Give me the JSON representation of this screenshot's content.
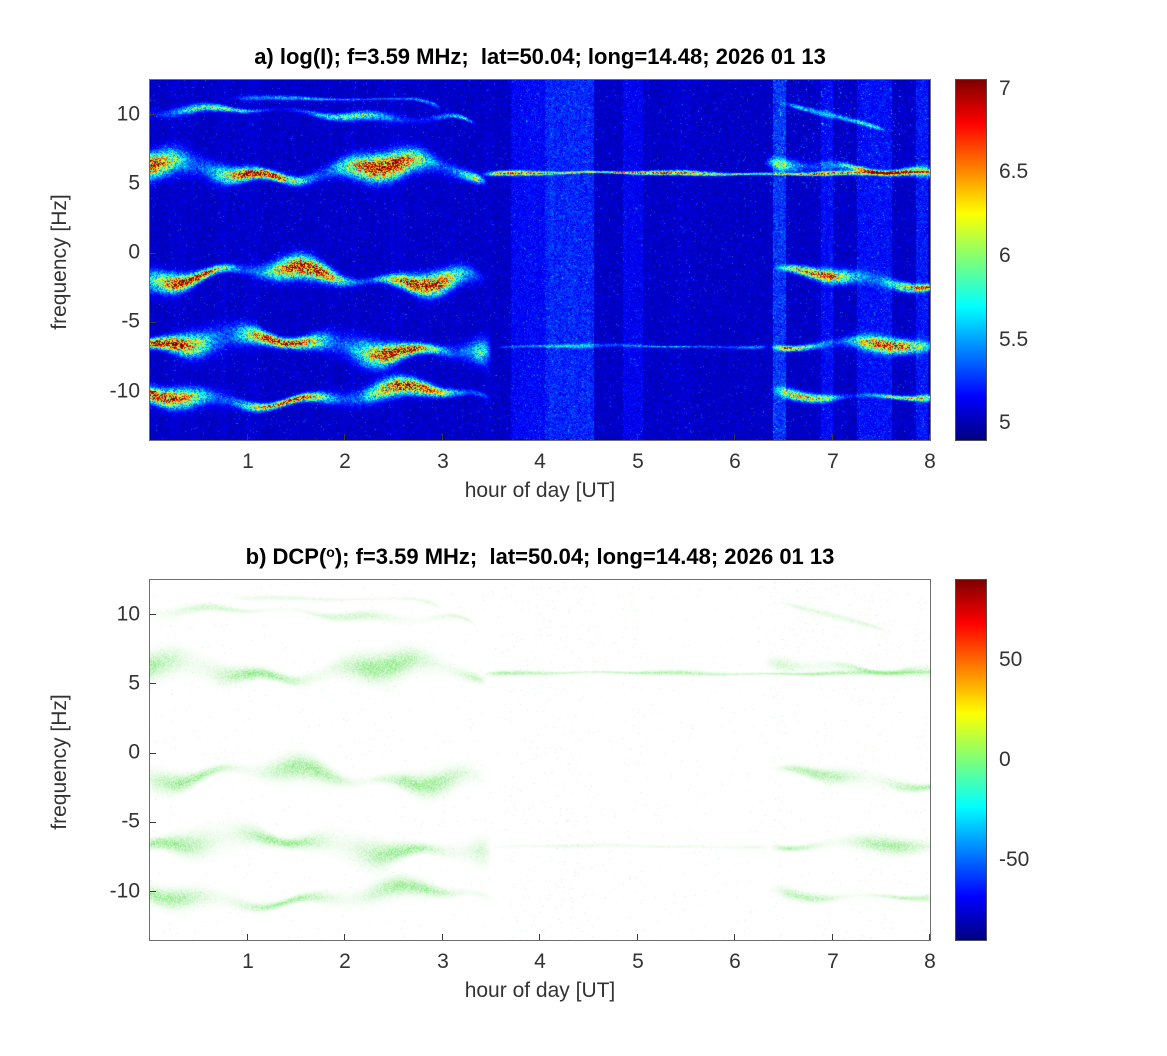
{
  "figure": {
    "panels": [
      {
        "id": "a",
        "title": "a) log(I); f=3.59 MHz;  lat=50.04; long=14.48; 2026 01 13",
        "xlabel": "hour of day [UT]",
        "ylabel": "frequency [Hz]",
        "xtick_labels": [
          "1",
          "2",
          "3",
          "4",
          "5",
          "6",
          "7",
          "8"
        ],
        "ytick_labels": [
          "10",
          "5",
          "0",
          "-5",
          "-10"
        ],
        "colorbar_tick_labels": [
          "7",
          "6.5",
          "6",
          "5.5",
          "5"
        ]
      },
      {
        "id": "b",
        "title_prefix": "b) DCP(",
        "title_sup": "o",
        "title_suffix": "); f=3.59 MHz;  lat=50.04; long=14.48; 2026 01 13",
        "xlabel": "hour of day [UT]",
        "ylabel": "frequency [Hz]",
        "xtick_labels": [
          "1",
          "2",
          "3",
          "4",
          "5",
          "6",
          "7",
          "8"
        ],
        "ytick_labels": [
          "10",
          "5",
          "0",
          "-5",
          "-10"
        ],
        "colorbar_tick_labels": [
          "50",
          "0",
          "-50"
        ]
      }
    ]
  },
  "chart_data": [
    {
      "type": "heatmap",
      "panel": "a",
      "title": "a) log(I); f=3.59 MHz; lat=50.04; long=14.48; 2026 01 13",
      "xlabel": "hour of day [UT]",
      "ylabel": "frequency [Hz]",
      "xlim": [
        0,
        8
      ],
      "ylim": [
        -13.5,
        12.5
      ],
      "xticks": [
        1,
        2,
        3,
        4,
        5,
        6,
        7,
        8
      ],
      "yticks": [
        10,
        5,
        0,
        -5,
        -10
      ],
      "colormap": "jet",
      "clim": [
        4.9,
        7.05
      ],
      "colorbar_ticks": [
        7,
        6.5,
        6,
        5.5,
        5
      ],
      "background_level": 5.0,
      "bands": [
        {
          "center_hz": 10.1,
          "x_range": [
            0,
            3.35
          ],
          "half_width_hz": 0.28,
          "peak_level": 5.85,
          "note": "faint thin upper trace"
        },
        {
          "center_hz": 11.2,
          "x_range": [
            0.8,
            3.0
          ],
          "half_width_hz": 0.15,
          "peak_level": 5.5,
          "note": "very faint wisp"
        },
        {
          "center_hz": 6.0,
          "x_range": [
            0,
            3.45
          ],
          "half_width_hz": 0.75,
          "peak_level": 7.0,
          "note": "strong trace"
        },
        {
          "center_hz": 5.8,
          "x_range": [
            3.4,
            8.0
          ],
          "half_width_hz": 0.14,
          "peak_level": 6.6,
          "note": "thin continuous line to end of record"
        },
        {
          "center_hz": -1.6,
          "x_range": [
            0,
            3.45
          ],
          "half_width_hz": 0.65,
          "peak_level": 6.9,
          "note": "strong trace"
        },
        {
          "center_hz": -6.6,
          "x_range": [
            0,
            3.5
          ],
          "half_width_hz": 0.8,
          "peak_level": 7.0,
          "note": "strongest trace"
        },
        {
          "center_hz": -10.3,
          "x_range": [
            0,
            3.5
          ],
          "half_width_hz": 0.55,
          "peak_level": 6.85,
          "note": "strong trace"
        },
        {
          "center_hz": -6.7,
          "x_range": [
            3.5,
            6.35
          ],
          "half_width_hz": 0.12,
          "peak_level": 5.45,
          "note": "very faint continuation"
        },
        {
          "center_hz": 6.1,
          "x_range": [
            6.3,
            8.0
          ],
          "half_width_hz": 0.38,
          "peak_level": 6.55,
          "note": "trace reappears"
        },
        {
          "center_hz": -1.5,
          "x_range": [
            6.35,
            8.0
          ],
          "half_width_hz": 0.42,
          "peak_level": 6.6,
          "drift_hz": -0.6
        },
        {
          "center_hz": -6.5,
          "x_range": [
            6.35,
            8.0
          ],
          "half_width_hz": 0.45,
          "peak_level": 6.6,
          "drift_hz": -0.5
        },
        {
          "center_hz": -9.7,
          "x_range": [
            6.35,
            8.0
          ],
          "half_width_hz": 0.32,
          "peak_level": 6.25,
          "drift_hz": -0.9
        },
        {
          "center_hz": 10.9,
          "x_range": [
            6.45,
            7.55
          ],
          "half_width_hz": 0.18,
          "peak_level": 5.8,
          "drift_hz": -2.0
        }
      ],
      "vertical_stripes": [
        {
          "x_range": [
            3.7,
            4.05
          ],
          "boost": 0.05
        },
        {
          "x_range": [
            4.05,
            4.55
          ],
          "boost": 0.08
        },
        {
          "x_range": [
            4.85,
            5.05
          ],
          "boost": 0.04
        },
        {
          "x_range": [
            6.38,
            6.52
          ],
          "boost": 0.1
        },
        {
          "x_range": [
            6.88,
            7.0
          ],
          "boost": 0.05
        },
        {
          "x_range": [
            7.25,
            7.6
          ],
          "boost": 0.06
        },
        {
          "x_range": [
            7.85,
            7.97
          ],
          "boost": 0.07
        }
      ]
    },
    {
      "type": "heatmap",
      "panel": "b",
      "title": "b) DCP(o); f=3.59 MHz; lat=50.04; long=14.48; 2026 01 13",
      "xlabel": "hour of day [UT]",
      "ylabel": "frequency [Hz]",
      "xlim": [
        0,
        8
      ],
      "ylim": [
        -13.5,
        12.5
      ],
      "xticks": [
        1,
        2,
        3,
        4,
        5,
        6,
        7,
        8
      ],
      "yticks": [
        10,
        5,
        0,
        -5,
        -10
      ],
      "colormap": "jet",
      "clim": [
        -90,
        90
      ],
      "colorbar_ticks": [
        50,
        0,
        -50
      ],
      "trace_value_deg": 5,
      "note": "Same Doppler-trace geometry as panel a; traces have DCP near 0 deg (light green) on white background"
    }
  ]
}
